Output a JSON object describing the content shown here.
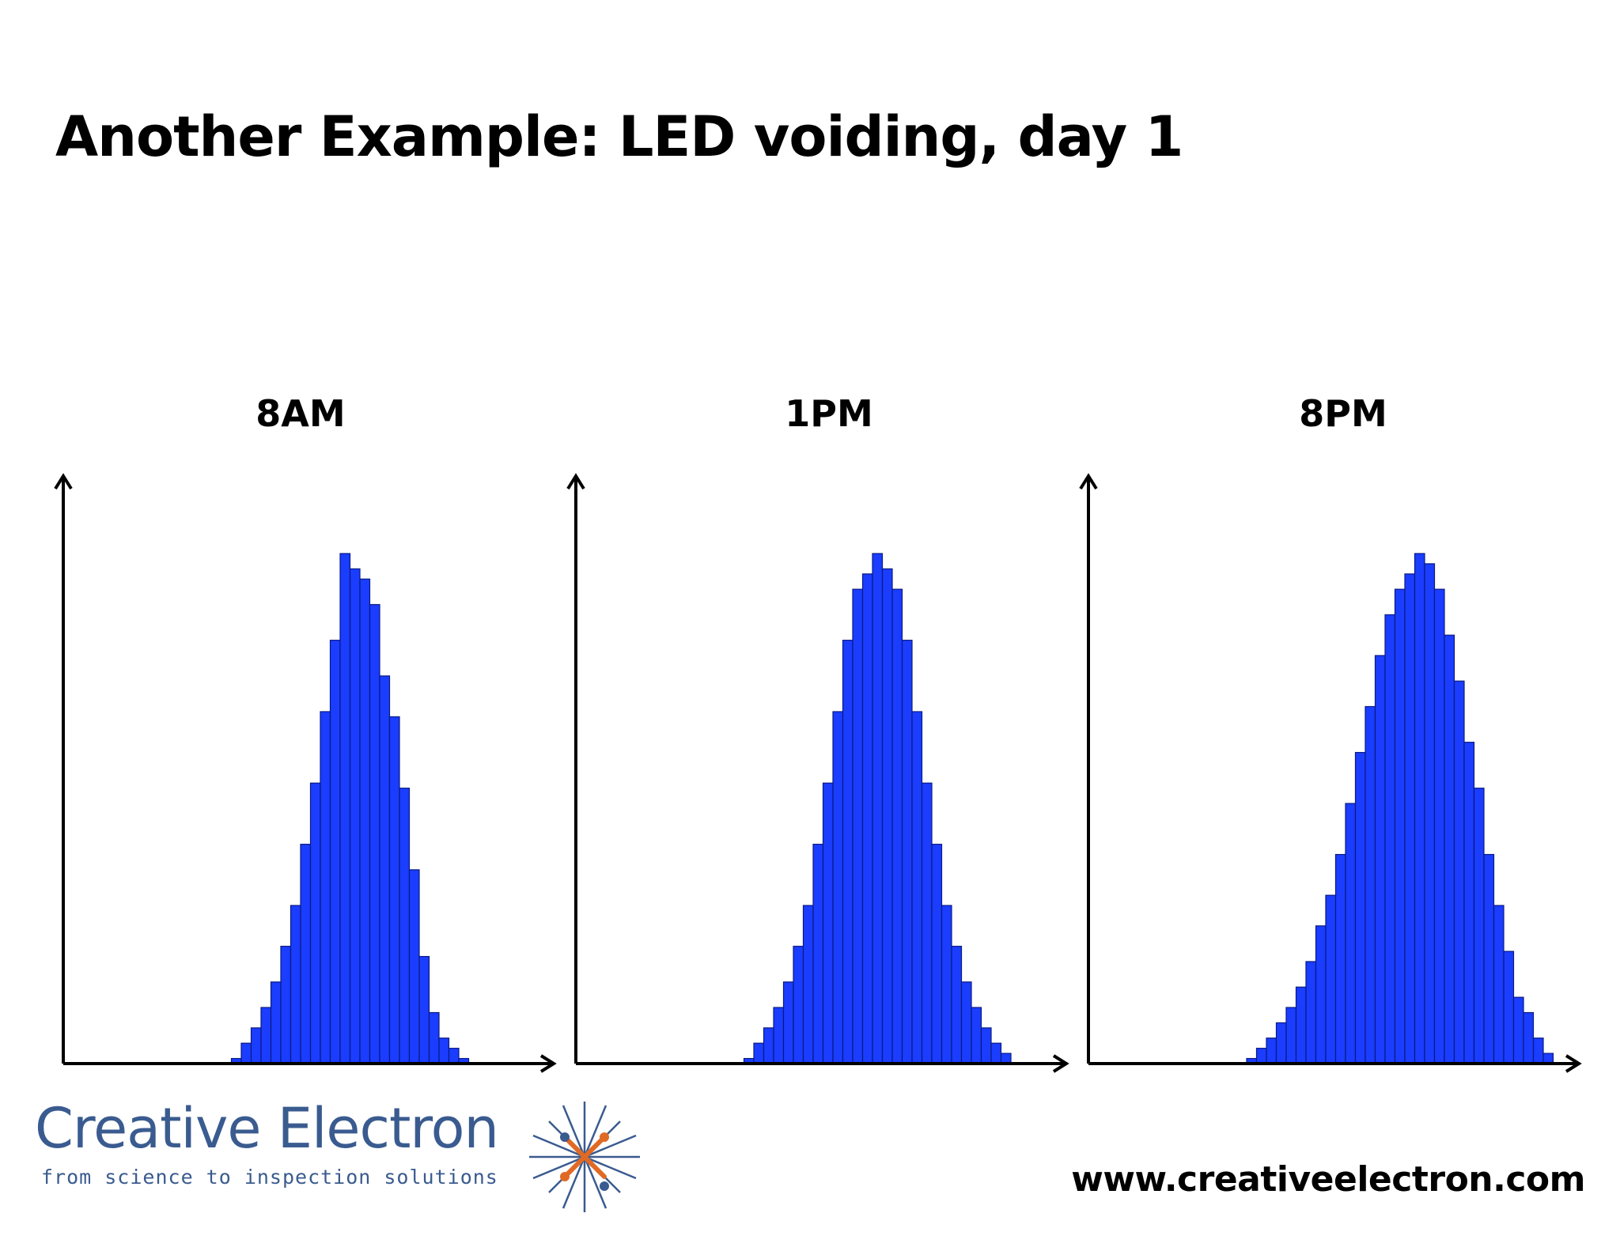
{
  "slide": {
    "title": "Another Example: LED voiding, day 1"
  },
  "colors": {
    "bar_fill": "#1a3dff",
    "bar_edge": "#0a1a80",
    "axis": "#000000",
    "brand": "#3a5b8f",
    "brand_accent": "#e06a25"
  },
  "chart_data": [
    {
      "type": "bar",
      "title": "8AM",
      "bins_left": 17,
      "values": [
        1,
        4,
        7,
        11,
        16,
        23,
        31,
        43,
        55,
        69,
        83,
        100,
        97,
        95,
        90,
        76,
        68,
        54,
        38,
        21,
        10,
        5,
        3,
        1
      ],
      "ylim": [
        0,
        112
      ],
      "bins_total": 48
    },
    {
      "type": "bar",
      "title": "1PM",
      "bins_left": 17,
      "values": [
        1,
        4,
        7,
        11,
        16,
        23,
        31,
        43,
        55,
        69,
        83,
        93,
        96,
        100,
        97,
        93,
        83,
        69,
        55,
        43,
        31,
        23,
        16,
        11,
        7,
        4,
        2
      ],
      "ylim": [
        0,
        112
      ],
      "bins_total": 48
    },
    {
      "type": "bar",
      "title": "8PM",
      "bins_left": 16,
      "values": [
        1,
        3,
        5,
        8,
        11,
        15,
        20,
        27,
        33,
        41,
        51,
        61,
        70,
        80,
        88,
        93,
        96,
        100,
        98,
        93,
        84,
        75,
        63,
        54,
        41,
        31,
        22,
        13,
        10,
        5,
        2
      ],
      "ylim": [
        0,
        112
      ],
      "bins_total": 48
    }
  ],
  "footer": {
    "company_name": "Creative Electron",
    "tagline": "from science to inspection solutions",
    "website": "www.creativeelectron.com"
  }
}
